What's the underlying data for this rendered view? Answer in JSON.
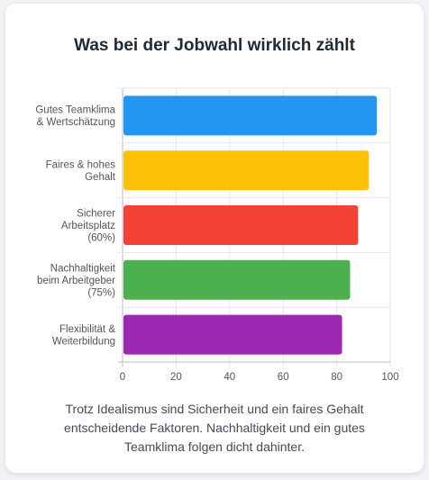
{
  "chart_data": {
    "type": "bar",
    "orientation": "horizontal",
    "title": "Was bei der Jobwahl wirklich zählt",
    "categories": [
      [
        "Gutes Teamklima",
        "& Wertschätzung"
      ],
      [
        "Faires & hohes",
        "Gehalt"
      ],
      [
        "Sicherer",
        "Arbeitsplatz",
        "(60%)"
      ],
      [
        "Nachhaltigkeit",
        "beim Arbeitgeber",
        "(75%)"
      ],
      [
        "Flexibilität &",
        "Weiterbildung"
      ]
    ],
    "values": [
      95,
      92,
      88,
      85,
      82
    ],
    "colors": [
      "#2196f3",
      "#ffc107",
      "#f44336",
      "#4caf50",
      "#9c27b0"
    ],
    "xlim": [
      0,
      100
    ],
    "xticks": [
      "0",
      "20",
      "40",
      "60",
      "80",
      "100"
    ],
    "grid": true,
    "xlabel": "",
    "ylabel": ""
  },
  "caption": "Trotz Idealismus sind Sicherheit und ein faires Gehalt entscheidende Faktoren. Nachhaltigkeit und ein gutes Teamklima folgen dicht dahinter."
}
